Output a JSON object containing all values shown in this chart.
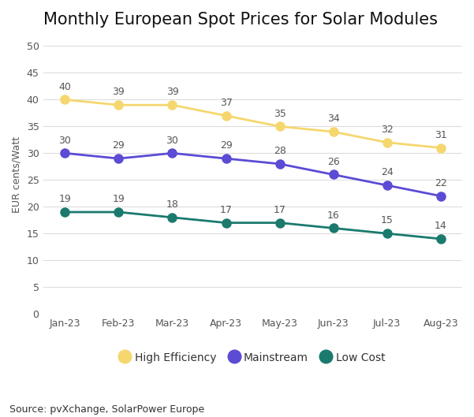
{
  "title": "Monthly European Spot Prices for Solar Modules",
  "ylabel": "EUR cents/Watt",
  "source": "Source: pvXchange, SolarPower Europe",
  "months": [
    "Jan-23",
    "Feb-23",
    "Mar-23",
    "Apr-23",
    "May-23",
    "Jun-23",
    "Jul-23",
    "Aug-23"
  ],
  "series": {
    "High Efficiency": {
      "values": [
        40,
        39,
        39,
        37,
        35,
        34,
        32,
        31
      ],
      "color": "#F5D76E",
      "zorder": 3
    },
    "Mainstream": {
      "values": [
        30,
        29,
        30,
        29,
        28,
        26,
        24,
        22
      ],
      "color": "#5B4BD5",
      "zorder": 2
    },
    "Low Cost": {
      "values": [
        19,
        19,
        18,
        17,
        17,
        16,
        15,
        14
      ],
      "color": "#1A7A6E",
      "zorder": 1
    }
  },
  "ylim": [
    0,
    52
  ],
  "yticks": [
    0,
    5,
    10,
    15,
    20,
    25,
    30,
    35,
    40,
    45,
    50
  ],
  "background_color": "#ffffff",
  "grid_color": "#dddddd",
  "title_fontsize": 15,
  "label_fontsize": 9,
  "tick_fontsize": 9,
  "annotation_fontsize": 9,
  "source_fontsize": 9,
  "legend_fontsize": 10,
  "linewidth": 2.0,
  "markersize": 8
}
